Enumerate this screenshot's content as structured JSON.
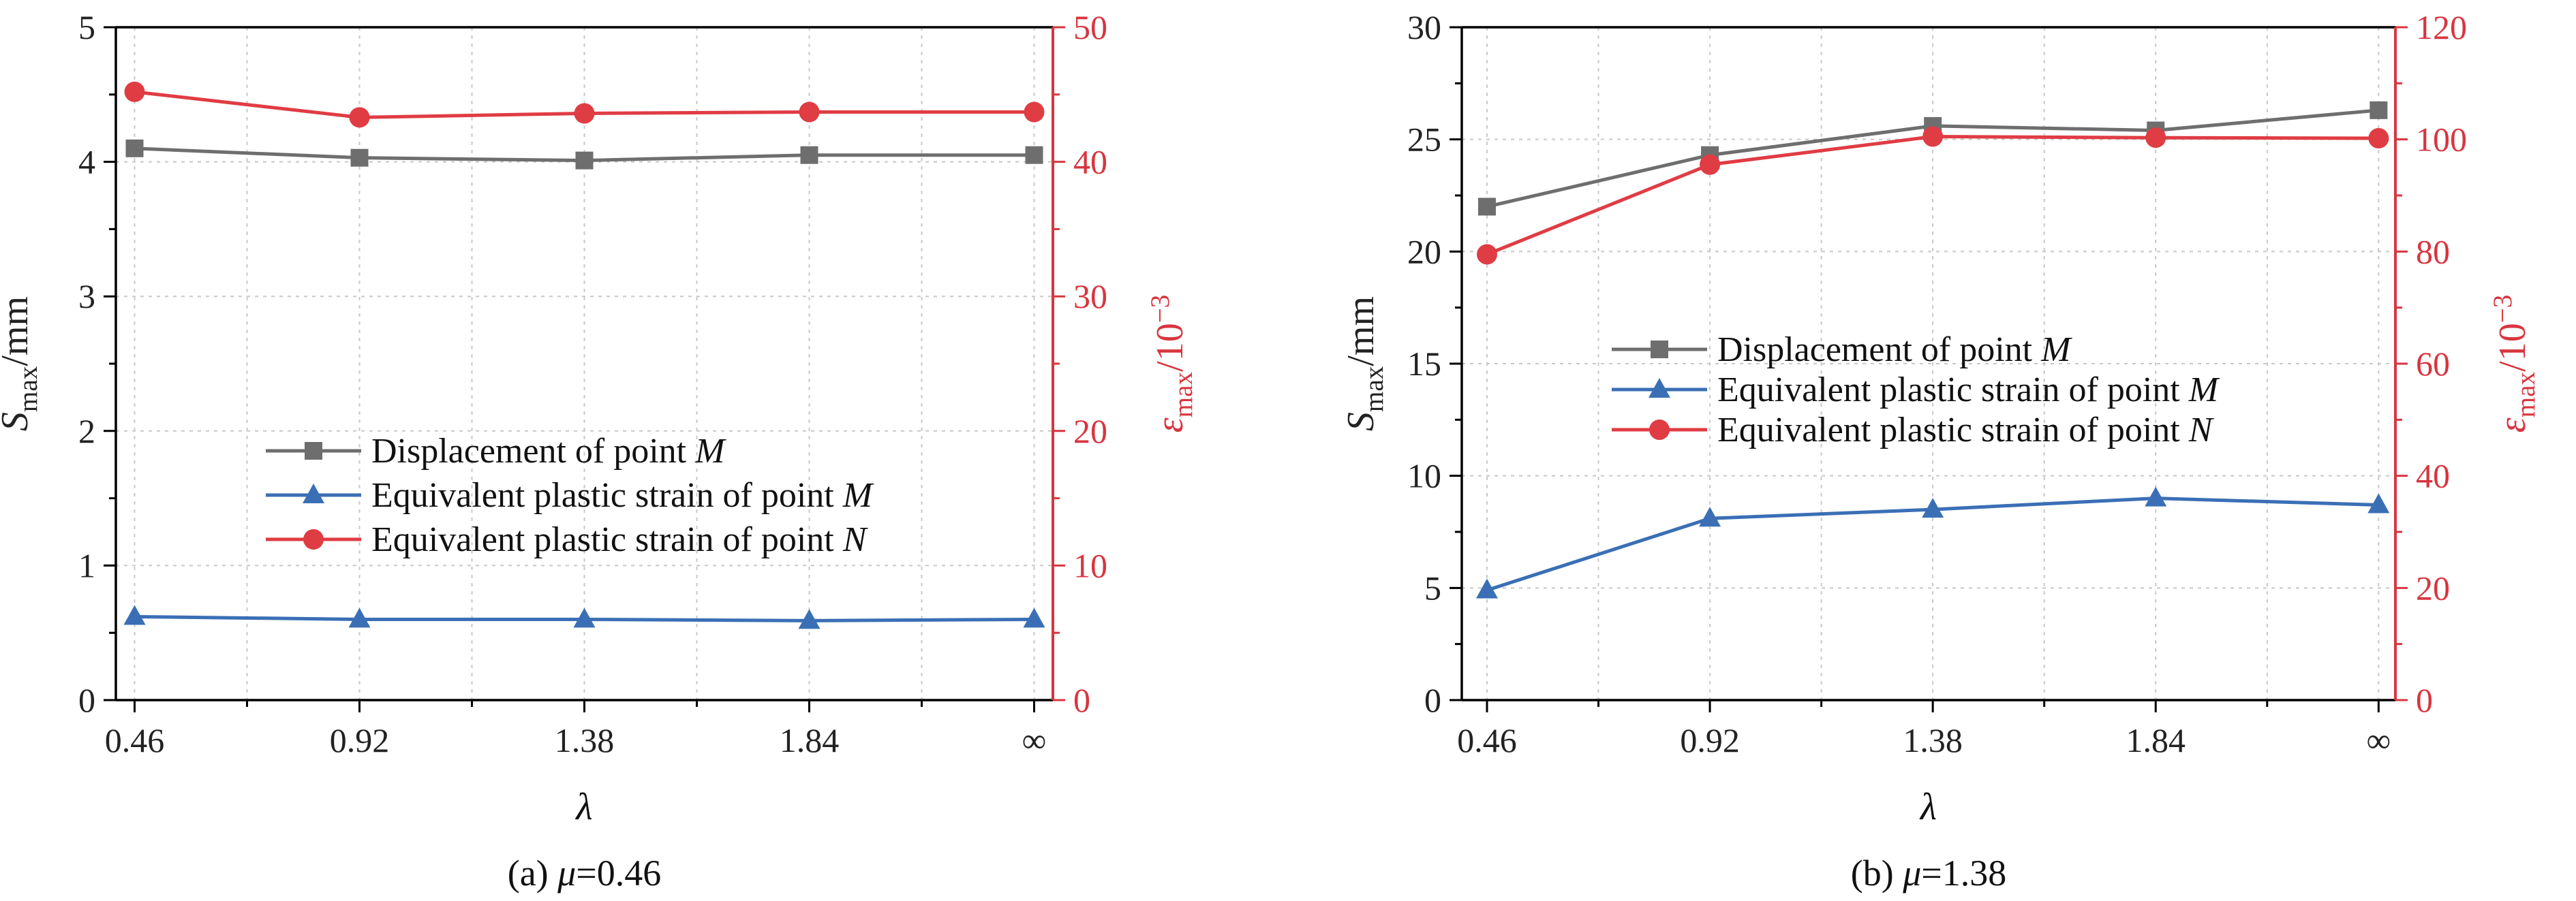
{
  "chart_data": [
    {
      "type": "line",
      "caption": "(a) μ=0.46",
      "x_labels": [
        "0.46",
        "0.92",
        "1.38",
        "1.84",
        "∞"
      ],
      "xlabel": "λ",
      "ylabel_left": "S_max/mm",
      "ylabel_right": "ε_max/10^−3",
      "ylim_left": [
        0,
        5
      ],
      "yticks_left": [
        "0",
        "1",
        "2",
        "3",
        "4",
        "5"
      ],
      "ylim_right": [
        0,
        50
      ],
      "yticks_right": [
        "0",
        "10",
        "20",
        "30",
        "40",
        "50"
      ],
      "grid": true,
      "legend_position": "center",
      "series": [
        {
          "name": "Displacement of point M",
          "axis": "left",
          "color": "#6e6e6e",
          "marker": "square",
          "values": [
            4.1,
            4.03,
            4.01,
            4.05,
            4.05
          ]
        },
        {
          "name": "Equivalent plastic strain of point M",
          "axis": "left",
          "color": "#3a6fb5",
          "marker": "triangle",
          "values": [
            0.62,
            0.6,
            0.6,
            0.59,
            0.6
          ]
        },
        {
          "name": "Equivalent plastic strain of point N",
          "axis": "right",
          "color": "#e03c44",
          "marker": "circle",
          "values": [
            45.2,
            43.3,
            43.6,
            43.7,
            43.7
          ]
        }
      ]
    },
    {
      "type": "line",
      "caption": "(b) μ=1.38",
      "x_labels": [
        "0.46",
        "0.92",
        "1.38",
        "1.84",
        "∞"
      ],
      "xlabel": "λ",
      "ylabel_left": "S_max/mm",
      "ylabel_right": "ε_max/10^−3",
      "ylim_left": [
        0,
        30
      ],
      "yticks_left": [
        "0",
        "5",
        "10",
        "15",
        "20",
        "25",
        "30"
      ],
      "ylim_right": [
        0,
        120
      ],
      "yticks_right": [
        "0",
        "20",
        "40",
        "60",
        "80",
        "100",
        "120"
      ],
      "grid": true,
      "legend_position": "center",
      "series": [
        {
          "name": "Displacement of point M",
          "axis": "left",
          "color": "#6e6e6e",
          "marker": "square",
          "values": [
            22.0,
            24.3,
            25.6,
            25.4,
            26.3
          ]
        },
        {
          "name": "Equivalent plastic strain of point M",
          "axis": "left",
          "color": "#3a6fb5",
          "marker": "triangle",
          "values": [
            4.9,
            8.1,
            8.5,
            9.0,
            8.7
          ]
        },
        {
          "name": "Equivalent plastic strain of point N",
          "axis": "right",
          "color": "#e03c44",
          "marker": "circle",
          "values": [
            79.5,
            95.5,
            100.5,
            100.3,
            100.2
          ]
        }
      ]
    }
  ],
  "colors": {
    "left_axis": "#222222",
    "right_axis": "#d8353f"
  }
}
